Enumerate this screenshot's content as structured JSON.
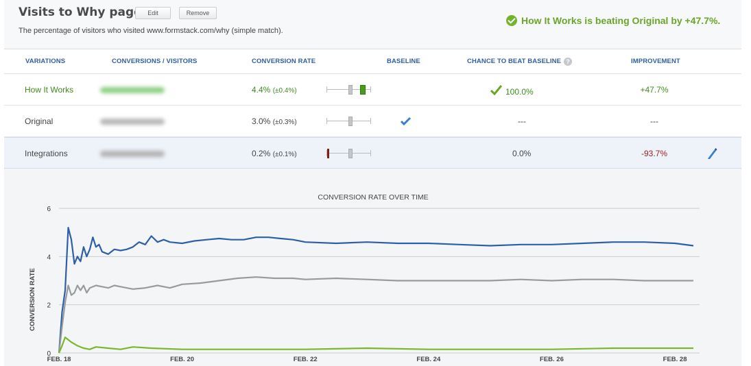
{
  "header": {
    "title": "Visits to Why page",
    "edit_label": "Edit",
    "remove_label": "Remove",
    "subtitle": "The percentage of visitors who visited www.formstack.com/why (simple match).",
    "winner_text": "How It Works is beating Original by +47.7%.",
    "winner_icon": "check-circle-icon"
  },
  "table": {
    "columns": [
      "VARIATIONS",
      "CONVERSIONS / VISITORS",
      "CONVERSION RATE",
      "BASELINE",
      "CHANCE TO BEAT BASELINE",
      "IMPROVEMENT"
    ],
    "rows": [
      {
        "name": "How It Works",
        "rate": "4.4%",
        "ci": "(±0.4%)",
        "baseline": false,
        "chance": "100.0%",
        "improvement": "+47.7%",
        "color": "#3e8d1a"
      },
      {
        "name": "Original",
        "rate": "3.0%",
        "ci": "(±0.3%)",
        "baseline": true,
        "chance": "---",
        "improvement": "---",
        "color": "#444444"
      },
      {
        "name": "Integrations",
        "rate": "0.2%",
        "ci": "(±0.1%)",
        "baseline": false,
        "chance": "0.0%",
        "improvement": "-93.7%",
        "color": "#9b1c1c"
      }
    ]
  },
  "colors": {
    "accent": "#2f5fa0",
    "positive": "#3e8d1a",
    "negative": "#9b1c1c",
    "winner": "#6aa529"
  },
  "chart_data": {
    "type": "line",
    "title": "CONVERSION RATE OVER TIME",
    "ylabel": "CONVERSION RATE",
    "xlabel": "",
    "ylim": [
      0,
      6
    ],
    "yticks": [
      0,
      2,
      4,
      6
    ],
    "xticks": [
      "FEB. 18",
      "FEB. 20",
      "FEB. 22",
      "FEB. 24",
      "FEB. 26",
      "FEB. 28"
    ],
    "xlim": [
      18,
      28.4
    ],
    "grid": true,
    "series": [
      {
        "color": "#2d5fa8",
        "x": [
          18.0,
          18.05,
          18.1,
          18.15,
          18.2,
          18.25,
          18.3,
          18.35,
          18.4,
          18.45,
          18.5,
          18.55,
          18.6,
          18.65,
          18.7,
          18.8,
          18.9,
          19.0,
          19.1,
          19.2,
          19.3,
          19.4,
          19.5,
          19.6,
          19.7,
          19.8,
          20.0,
          20.2,
          20.4,
          20.6,
          20.8,
          21.0,
          21.2,
          21.4,
          21.6,
          21.8,
          22.0,
          22.5,
          23.0,
          23.5,
          24.0,
          24.5,
          25.0,
          25.5,
          26.0,
          26.5,
          27.0,
          27.5,
          28.0,
          28.3
        ],
        "y": [
          0,
          1.7,
          2.6,
          5.2,
          4.7,
          3.7,
          4.0,
          3.8,
          4.4,
          4.0,
          4.3,
          4.8,
          4.4,
          4.5,
          4.2,
          4.1,
          4.3,
          4.25,
          4.3,
          4.4,
          4.6,
          4.5,
          4.85,
          4.6,
          4.7,
          4.6,
          4.55,
          4.65,
          4.7,
          4.75,
          4.7,
          4.7,
          4.8,
          4.8,
          4.75,
          4.7,
          4.6,
          4.55,
          4.6,
          4.55,
          4.55,
          4.5,
          4.45,
          4.5,
          4.5,
          4.55,
          4.6,
          4.6,
          4.55,
          4.45
        ]
      },
      {
        "color": "#9a9a9a",
        "x": [
          18.0,
          18.05,
          18.1,
          18.15,
          18.2,
          18.25,
          18.3,
          18.35,
          18.4,
          18.45,
          18.5,
          18.6,
          18.7,
          18.8,
          18.9,
          19.0,
          19.2,
          19.4,
          19.6,
          19.8,
          20.0,
          20.3,
          20.6,
          20.9,
          21.2,
          21.5,
          21.8,
          22.0,
          22.5,
          23.0,
          23.5,
          24.0,
          24.5,
          25.0,
          25.5,
          26.0,
          26.5,
          27.0,
          27.5,
          28.0,
          28.3
        ],
        "y": [
          0,
          1.1,
          2.1,
          2.8,
          2.4,
          2.5,
          2.8,
          2.6,
          2.8,
          2.5,
          2.7,
          2.8,
          2.75,
          2.7,
          2.8,
          2.75,
          2.65,
          2.7,
          2.8,
          2.7,
          2.85,
          2.9,
          3.0,
          3.1,
          3.15,
          3.1,
          3.1,
          3.05,
          3.1,
          3.05,
          3.0,
          3.0,
          3.0,
          3.0,
          3.05,
          3.0,
          3.05,
          3.05,
          3.0,
          3.0,
          3.0
        ]
      },
      {
        "color": "#7cb62f",
        "x": [
          18.0,
          18.05,
          18.1,
          18.2,
          18.3,
          18.4,
          18.5,
          18.6,
          18.8,
          19.0,
          19.2,
          19.5,
          20.0,
          20.5,
          21.0,
          22.0,
          23.0,
          24.0,
          25.0,
          26.0,
          27.0,
          28.0,
          28.3
        ],
        "y": [
          0,
          0.3,
          0.65,
          0.45,
          0.3,
          0.2,
          0.15,
          0.25,
          0.2,
          0.15,
          0.25,
          0.2,
          0.15,
          0.15,
          0.15,
          0.15,
          0.2,
          0.15,
          0.15,
          0.15,
          0.2,
          0.2,
          0.2
        ]
      }
    ]
  }
}
